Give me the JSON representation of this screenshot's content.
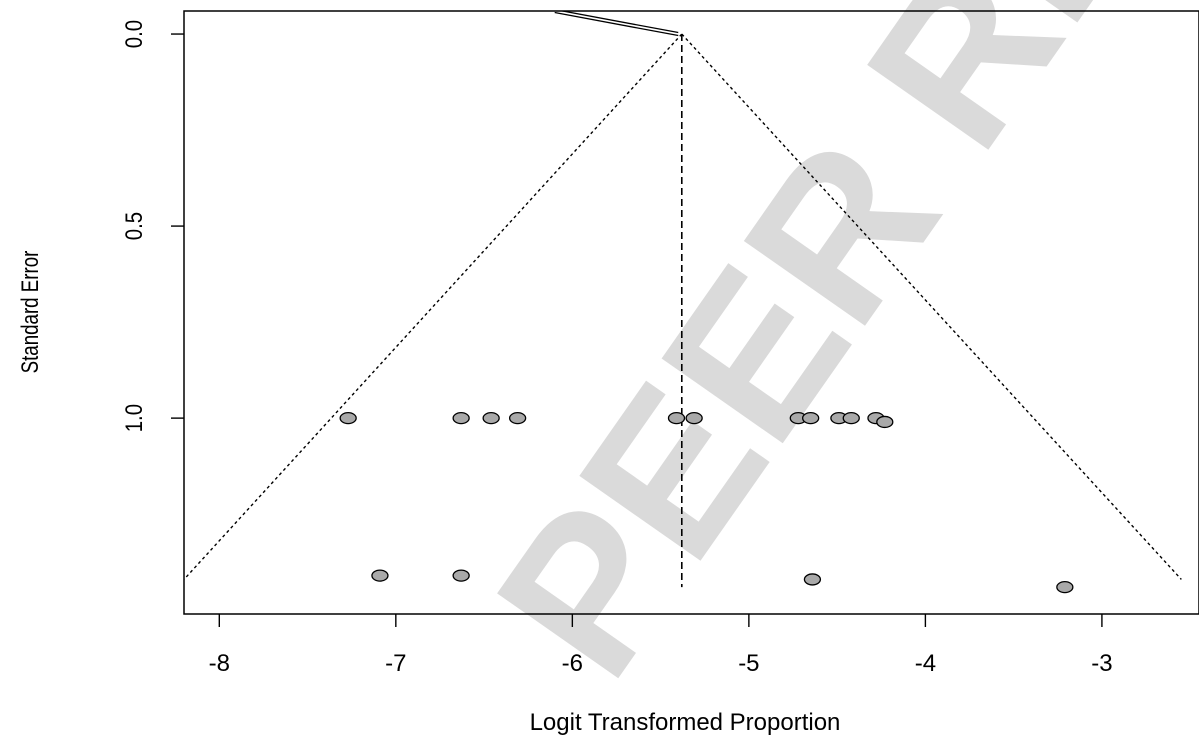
{
  "chart_data": {
    "type": "scatter",
    "title": "",
    "xlabel": "Logit Transformed Proportion",
    "ylabel": "Standard Error",
    "xlim": [
      -8.2,
      -2.45
    ],
    "ylim": [
      1.51,
      -0.06
    ],
    "y_reversed": true,
    "x_ticks": [
      -8,
      -7,
      -6,
      -5,
      -4,
      -3
    ],
    "x_tick_labels": [
      "-8",
      "-7",
      "-6",
      "-5",
      "-4",
      "-3"
    ],
    "y_ticks": [
      0.0,
      0.5,
      1.0
    ],
    "y_tick_labels": [
      "0.0",
      "0.5",
      "1.0"
    ],
    "grid": false,
    "legend": "none",
    "pooled_estimate": -5.38,
    "funnel": {
      "center_x": -5.38,
      "center_se": 0.0,
      "bottom_se": 1.42,
      "left_bottom_x": -8.2,
      "right_bottom_x": -2.55
    },
    "regression_line": [
      [
        -6.1,
        -0.06
      ],
      [
        -5.4,
        0.0
      ]
    ],
    "points": [
      {
        "x": -7.27,
        "y": 1.0
      },
      {
        "x": -6.63,
        "y": 1.0
      },
      {
        "x": -6.46,
        "y": 1.0
      },
      {
        "x": -6.31,
        "y": 1.0
      },
      {
        "x": -5.41,
        "y": 1.0
      },
      {
        "x": -5.31,
        "y": 1.0
      },
      {
        "x": -4.72,
        "y": 1.0
      },
      {
        "x": -4.65,
        "y": 1.0
      },
      {
        "x": -4.49,
        "y": 1.0
      },
      {
        "x": -4.42,
        "y": 1.0
      },
      {
        "x": -4.28,
        "y": 1.0
      },
      {
        "x": -4.23,
        "y": 1.01
      },
      {
        "x": -7.09,
        "y": 1.41
      },
      {
        "x": -6.63,
        "y": 1.41
      },
      {
        "x": -4.64,
        "y": 1.42
      },
      {
        "x": -3.21,
        "y": 1.44
      }
    ],
    "marker_color": "#a9a9a9",
    "line_color": "#000000"
  },
  "watermark": {
    "text": "PEER REVIEW",
    "color": "#d4d4d4"
  }
}
